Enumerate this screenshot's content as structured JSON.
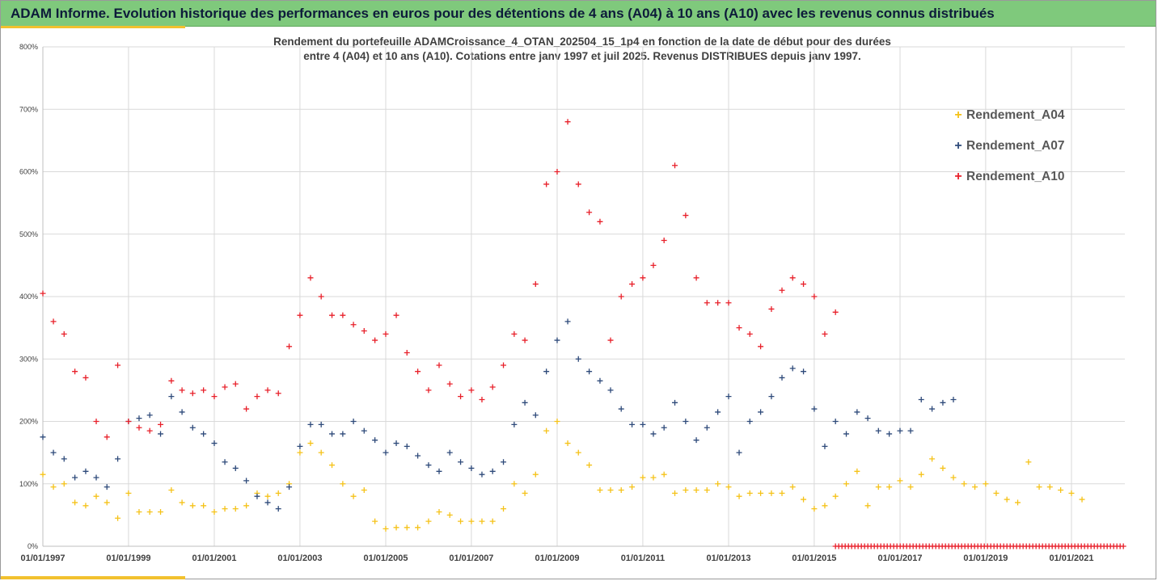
{
  "header": {
    "title": "ADAM Informe. Evolution historique des performances en euros pour des détentions de 4 ans (A04) à 10 ans (A10) avec les revenus connus distribués"
  },
  "chart_data": {
    "type": "scatter",
    "subtitle_lines": [
      "Rendement du portefeuille ADAMCroissance_4_OTAN_202504_15_1p4  en fonction de la date de début pour des durées",
      "entre 4 (A04) et 10 ans (A10). Cotations entre janv 1997 et juil 2025. Revenus DISTRIBUES depuis janv 1997."
    ],
    "xlabel": "",
    "ylabel": "",
    "x_range": [
      "1997-01-01",
      "2022-04-01"
    ],
    "ylim": [
      0,
      800
    ],
    "y_ticks": [
      0,
      100,
      200,
      300,
      400,
      500,
      600,
      700,
      800
    ],
    "y_tick_labels": [
      "0%",
      "100%",
      "200%",
      "300%",
      "400%",
      "500%",
      "600%",
      "700%",
      "800%"
    ],
    "x_ticks": [
      "1997-01-01",
      "1999-01-01",
      "2001-01-01",
      "2003-01-01",
      "2005-01-01",
      "2007-01-01",
      "2009-01-01",
      "2011-01-01",
      "2013-01-01",
      "2015-01-01",
      "2017-01-01",
      "2019-01-01",
      "2021-01-01"
    ],
    "x_tick_labels": [
      "01/01/1997",
      "01/01/1999",
      "01/01/2001",
      "01/01/2003",
      "01/01/2005",
      "01/01/2007",
      "01/01/2009",
      "01/01/2011",
      "01/01/2013",
      "01/01/2015",
      "01/01/2017",
      "01/01/2019",
      "01/01/2021"
    ],
    "grid": true,
    "legend_position": "right",
    "marker": "+",
    "series": [
      {
        "name": "Rendement_A04",
        "color": "#f5c218",
        "points": [
          [
            "1997-01-01",
            115
          ],
          [
            "1997-04-01",
            95
          ],
          [
            "1997-07-01",
            100
          ],
          [
            "1997-10-01",
            70
          ],
          [
            "1998-01-01",
            65
          ],
          [
            "1998-04-01",
            80
          ],
          [
            "1998-07-01",
            70
          ],
          [
            "1998-10-01",
            45
          ],
          [
            "1999-01-01",
            85
          ],
          [
            "1999-04-01",
            55
          ],
          [
            "1999-07-01",
            55
          ],
          [
            "1999-10-01",
            55
          ],
          [
            "2000-01-01",
            90
          ],
          [
            "2000-04-01",
            70
          ],
          [
            "2000-07-01",
            65
          ],
          [
            "2000-10-01",
            65
          ],
          [
            "2001-01-01",
            55
          ],
          [
            "2001-04-01",
            60
          ],
          [
            "2001-07-01",
            60
          ],
          [
            "2001-10-01",
            65
          ],
          [
            "2002-01-01",
            85
          ],
          [
            "2002-04-01",
            80
          ],
          [
            "2002-07-01",
            85
          ],
          [
            "2002-10-01",
            100
          ],
          [
            "2003-01-01",
            150
          ],
          [
            "2003-04-01",
            165
          ],
          [
            "2003-07-01",
            150
          ],
          [
            "2003-10-01",
            130
          ],
          [
            "2004-01-01",
            100
          ],
          [
            "2004-04-01",
            80
          ],
          [
            "2004-07-01",
            90
          ],
          [
            "2004-10-01",
            40
          ],
          [
            "2005-01-01",
            28
          ],
          [
            "2005-04-01",
            30
          ],
          [
            "2005-07-01",
            30
          ],
          [
            "2005-10-01",
            30
          ],
          [
            "2006-01-01",
            40
          ],
          [
            "2006-04-01",
            55
          ],
          [
            "2006-07-01",
            50
          ],
          [
            "2006-10-01",
            40
          ],
          [
            "2007-01-01",
            40
          ],
          [
            "2007-04-01",
            40
          ],
          [
            "2007-07-01",
            40
          ],
          [
            "2007-10-01",
            60
          ],
          [
            "2008-01-01",
            100
          ],
          [
            "2008-04-01",
            85
          ],
          [
            "2008-07-01",
            115
          ],
          [
            "2008-10-01",
            185
          ],
          [
            "2009-01-01",
            200
          ],
          [
            "2009-04-01",
            165
          ],
          [
            "2009-07-01",
            150
          ],
          [
            "2009-10-01",
            130
          ],
          [
            "2010-01-01",
            90
          ],
          [
            "2010-04-01",
            90
          ],
          [
            "2010-07-01",
            90
          ],
          [
            "2010-10-01",
            95
          ],
          [
            "2011-01-01",
            110
          ],
          [
            "2011-04-01",
            110
          ],
          [
            "2011-07-01",
            115
          ],
          [
            "2011-10-01",
            85
          ],
          [
            "2012-01-01",
            90
          ],
          [
            "2012-04-01",
            90
          ],
          [
            "2012-07-01",
            90
          ],
          [
            "2012-10-01",
            100
          ],
          [
            "2013-01-01",
            95
          ],
          [
            "2013-04-01",
            80
          ],
          [
            "2013-07-01",
            85
          ],
          [
            "2013-10-01",
            85
          ],
          [
            "2014-01-01",
            85
          ],
          [
            "2014-04-01",
            85
          ],
          [
            "2014-07-01",
            95
          ],
          [
            "2014-10-01",
            75
          ],
          [
            "2015-01-01",
            60
          ],
          [
            "2015-04-01",
            65
          ],
          [
            "2015-07-01",
            80
          ],
          [
            "2015-10-01",
            100
          ],
          [
            "2016-01-01",
            120
          ],
          [
            "2016-04-01",
            65
          ],
          [
            "2016-07-01",
            95
          ],
          [
            "2016-10-01",
            95
          ],
          [
            "2017-01-01",
            105
          ],
          [
            "2017-04-01",
            95
          ],
          [
            "2017-07-01",
            115
          ],
          [
            "2017-10-01",
            140
          ],
          [
            "2018-01-01",
            125
          ],
          [
            "2018-04-01",
            110
          ],
          [
            "2018-07-01",
            100
          ],
          [
            "2018-10-01",
            95
          ],
          [
            "2019-01-01",
            100
          ],
          [
            "2019-04-01",
            85
          ],
          [
            "2019-07-01",
            75
          ],
          [
            "2019-10-01",
            70
          ],
          [
            "2020-01-01",
            135
          ],
          [
            "2020-04-01",
            95
          ],
          [
            "2020-07-01",
            95
          ],
          [
            "2020-10-01",
            90
          ],
          [
            "2021-01-01",
            85
          ],
          [
            "2021-04-01",
            75
          ]
        ]
      },
      {
        "name": "Rendement_A07",
        "color": "#2e4a7a",
        "points": [
          [
            "1997-01-01",
            175
          ],
          [
            "1997-04-01",
            150
          ],
          [
            "1997-07-01",
            140
          ],
          [
            "1997-10-01",
            110
          ],
          [
            "1998-01-01",
            120
          ],
          [
            "1998-04-01",
            110
          ],
          [
            "1998-07-01",
            95
          ],
          [
            "1998-10-01",
            140
          ],
          [
            "1999-01-01",
            200
          ],
          [
            "1999-04-01",
            205
          ],
          [
            "1999-07-01",
            210
          ],
          [
            "1999-10-01",
            180
          ],
          [
            "2000-01-01",
            240
          ],
          [
            "2000-04-01",
            215
          ],
          [
            "2000-07-01",
            190
          ],
          [
            "2000-10-01",
            180
          ],
          [
            "2001-01-01",
            165
          ],
          [
            "2001-04-01",
            135
          ],
          [
            "2001-07-01",
            125
          ],
          [
            "2001-10-01",
            105
          ],
          [
            "2002-01-01",
            80
          ],
          [
            "2002-04-01",
            70
          ],
          [
            "2002-07-01",
            60
          ],
          [
            "2002-10-01",
            95
          ],
          [
            "2003-01-01",
            160
          ],
          [
            "2003-04-01",
            195
          ],
          [
            "2003-07-01",
            195
          ],
          [
            "2003-10-01",
            180
          ],
          [
            "2004-01-01",
            180
          ],
          [
            "2004-04-01",
            200
          ],
          [
            "2004-07-01",
            185
          ],
          [
            "2004-10-01",
            170
          ],
          [
            "2005-01-01",
            150
          ],
          [
            "2005-04-01",
            165
          ],
          [
            "2005-07-01",
            160
          ],
          [
            "2005-10-01",
            145
          ],
          [
            "2006-01-01",
            130
          ],
          [
            "2006-04-01",
            120
          ],
          [
            "2006-07-01",
            150
          ],
          [
            "2006-10-01",
            135
          ],
          [
            "2007-01-01",
            125
          ],
          [
            "2007-04-01",
            115
          ],
          [
            "2007-07-01",
            120
          ],
          [
            "2007-10-01",
            135
          ],
          [
            "2008-01-01",
            195
          ],
          [
            "2008-04-01",
            230
          ],
          [
            "2008-07-01",
            210
          ],
          [
            "2008-10-01",
            280
          ],
          [
            "2009-01-01",
            330
          ],
          [
            "2009-04-01",
            360
          ],
          [
            "2009-07-01",
            300
          ],
          [
            "2009-10-01",
            280
          ],
          [
            "2010-01-01",
            265
          ],
          [
            "2010-04-01",
            250
          ],
          [
            "2010-07-01",
            220
          ],
          [
            "2010-10-01",
            195
          ],
          [
            "2011-01-01",
            195
          ],
          [
            "2011-04-01",
            180
          ],
          [
            "2011-07-01",
            190
          ],
          [
            "2011-10-01",
            230
          ],
          [
            "2012-01-01",
            200
          ],
          [
            "2012-04-01",
            170
          ],
          [
            "2012-07-01",
            190
          ],
          [
            "2012-10-01",
            215
          ],
          [
            "2013-01-01",
            240
          ],
          [
            "2013-04-01",
            150
          ],
          [
            "2013-07-01",
            200
          ],
          [
            "2013-10-01",
            215
          ],
          [
            "2014-01-01",
            240
          ],
          [
            "2014-04-01",
            270
          ],
          [
            "2014-07-01",
            285
          ],
          [
            "2014-10-01",
            280
          ],
          [
            "2015-01-01",
            220
          ],
          [
            "2015-04-01",
            160
          ],
          [
            "2015-07-01",
            200
          ],
          [
            "2015-10-01",
            180
          ],
          [
            "2016-01-01",
            215
          ],
          [
            "2016-04-01",
            205
          ],
          [
            "2016-07-01",
            185
          ],
          [
            "2016-10-01",
            180
          ],
          [
            "2017-01-01",
            185
          ],
          [
            "2017-04-01",
            185
          ],
          [
            "2017-07-01",
            235
          ],
          [
            "2017-10-01",
            220
          ],
          [
            "2018-01-01",
            230
          ],
          [
            "2018-04-01",
            235
          ]
        ]
      },
      {
        "name": "Rendement_A10",
        "color": "#e8202a",
        "points": [
          [
            "1997-01-01",
            405
          ],
          [
            "1997-04-01",
            360
          ],
          [
            "1997-07-01",
            340
          ],
          [
            "1997-10-01",
            280
          ],
          [
            "1998-01-01",
            270
          ],
          [
            "1998-04-01",
            200
          ],
          [
            "1998-07-01",
            175
          ],
          [
            "1998-10-01",
            290
          ],
          [
            "1999-01-01",
            200
          ],
          [
            "1999-04-01",
            190
          ],
          [
            "1999-07-01",
            185
          ],
          [
            "1999-10-01",
            195
          ],
          [
            "2000-01-01",
            265
          ],
          [
            "2000-04-01",
            250
          ],
          [
            "2000-07-01",
            245
          ],
          [
            "2000-10-01",
            250
          ],
          [
            "2001-01-01",
            240
          ],
          [
            "2001-04-01",
            255
          ],
          [
            "2001-07-01",
            260
          ],
          [
            "2001-10-01",
            220
          ],
          [
            "2002-01-01",
            240
          ],
          [
            "2002-04-01",
            250
          ],
          [
            "2002-07-01",
            245
          ],
          [
            "2002-10-01",
            320
          ],
          [
            "2003-01-01",
            370
          ],
          [
            "2003-04-01",
            430
          ],
          [
            "2003-07-01",
            400
          ],
          [
            "2003-10-01",
            370
          ],
          [
            "2004-01-01",
            370
          ],
          [
            "2004-04-01",
            355
          ],
          [
            "2004-07-01",
            345
          ],
          [
            "2004-10-01",
            330
          ],
          [
            "2005-01-01",
            340
          ],
          [
            "2005-04-01",
            370
          ],
          [
            "2005-07-01",
            310
          ],
          [
            "2005-10-01",
            280
          ],
          [
            "2006-01-01",
            250
          ],
          [
            "2006-04-01",
            290
          ],
          [
            "2006-07-01",
            260
          ],
          [
            "2006-10-01",
            240
          ],
          [
            "2007-01-01",
            250
          ],
          [
            "2007-04-01",
            235
          ],
          [
            "2007-07-01",
            255
          ],
          [
            "2007-10-01",
            290
          ],
          [
            "2008-01-01",
            340
          ],
          [
            "2008-04-01",
            330
          ],
          [
            "2008-07-01",
            420
          ],
          [
            "2008-10-01",
            580
          ],
          [
            "2009-01-01",
            600
          ],
          [
            "2009-04-01",
            680
          ],
          [
            "2009-07-01",
            580
          ],
          [
            "2009-10-01",
            535
          ],
          [
            "2010-01-01",
            520
          ],
          [
            "2010-04-01",
            330
          ],
          [
            "2010-07-01",
            400
          ],
          [
            "2010-10-01",
            420
          ],
          [
            "2011-01-01",
            430
          ],
          [
            "2011-04-01",
            450
          ],
          [
            "2011-07-01",
            490
          ],
          [
            "2011-10-01",
            610
          ],
          [
            "2012-01-01",
            530
          ],
          [
            "2012-04-01",
            430
          ],
          [
            "2012-07-01",
            390
          ],
          [
            "2012-10-01",
            390
          ],
          [
            "2013-01-01",
            390
          ],
          [
            "2013-04-01",
            350
          ],
          [
            "2013-07-01",
            340
          ],
          [
            "2013-10-01",
            320
          ],
          [
            "2014-01-01",
            380
          ],
          [
            "2014-04-01",
            410
          ],
          [
            "2014-07-01",
            430
          ],
          [
            "2014-10-01",
            420
          ],
          [
            "2015-01-01",
            400
          ],
          [
            "2015-04-01",
            340
          ],
          [
            "2015-07-01",
            375
          ]
        ]
      }
    ],
    "zero_band": {
      "color": "#e8202a",
      "x_start": "2015-07-01",
      "x_end": "2022-04-01",
      "value": 0
    }
  },
  "colors": {
    "title_bar": "#7fc97c",
    "accent": "#f2c12e",
    "grid": "#d9d9d9",
    "axis_text": "#404040"
  }
}
